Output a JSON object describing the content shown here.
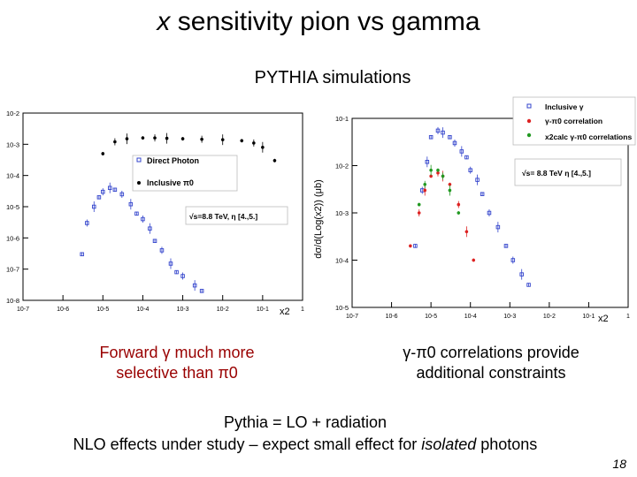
{
  "title": {
    "prefix": "x",
    "rest": " sensitivity pion vs gamma"
  },
  "subtitle": "PYTHIA simulations",
  "chart_data": [
    {
      "type": "scatter",
      "log_x": true,
      "log_y": true,
      "xlim": [
        1e-07,
        1
      ],
      "ylim": [
        1e-08,
        0.01
      ],
      "xlabel": "x2",
      "ylabel": "",
      "x_ticks": [
        "10-7",
        "10-6",
        "10-5",
        "10-4",
        "10-3",
        "10-2",
        "10-1",
        "1"
      ],
      "y_ticks": [
        "10-8",
        "10-7",
        "10-6",
        "10-5",
        "10-4",
        "10-3",
        "10-2"
      ],
      "annotation": "√s=8.8 TeV, η [4.,5.]",
      "series": [
        {
          "name": "Direct Photon",
          "color": "#3344cc",
          "marker": "open-square",
          "x": [
            3e-06,
            4e-06,
            6e-06,
            8e-06,
            1e-05,
            1.5e-05,
            2e-05,
            3e-05,
            5e-05,
            7e-05,
            0.0001,
            0.00015,
            0.0002,
            0.0003,
            0.0005,
            0.0007,
            0.001,
            0.002,
            0.003
          ],
          "y": [
            3e-07,
            3e-06,
            1e-05,
            2e-05,
            3e-05,
            4e-05,
            3.5e-05,
            2.5e-05,
            1.2e-05,
            6e-06,
            4e-06,
            2e-06,
            8e-07,
            4e-07,
            1.5e-07,
            8e-08,
            6e-08,
            3e-08,
            2e-08
          ]
        },
        {
          "name": "Inclusive π0",
          "color": "#000000",
          "marker": "filled-circle",
          "x": [
            1e-05,
            2e-05,
            4e-05,
            0.0001,
            0.0002,
            0.0004,
            0.001,
            0.003,
            0.01,
            0.03,
            0.06,
            0.1,
            0.2
          ],
          "y": [
            0.0005,
            0.0012,
            0.0015,
            0.0016,
            0.0016,
            0.00155,
            0.0015,
            0.00145,
            0.0014,
            0.0013,
            0.0011,
            0.0008,
            0.0003
          ]
        }
      ]
    },
    {
      "type": "scatter",
      "log_x": true,
      "log_y": true,
      "xlim": [
        1e-07,
        1
      ],
      "ylim": [
        1e-05,
        0.1
      ],
      "xlabel": "x2",
      "ylabel": "dσ/d(Log(x2)) (μb)",
      "x_ticks": [
        "10-7",
        "10-6",
        "10-5",
        "10-4",
        "10-3",
        "10-2",
        "10-1",
        "1"
      ],
      "y_ticks": [
        "10-5",
        "10-4",
        "10-3",
        "10-2",
        "10-1"
      ],
      "annotation": "√s= 8.8 TeV η [4.,5.]",
      "series": [
        {
          "name": "Inclusive γ",
          "color": "#3344cc",
          "marker": "open-square",
          "x": [
            4e-06,
            6e-06,
            8e-06,
            1e-05,
            1.5e-05,
            2e-05,
            3e-05,
            4e-05,
            6e-05,
            8e-05,
            0.0001,
            0.00015,
            0.0002,
            0.0003,
            0.0005,
            0.0008,
            0.0012,
            0.002,
            0.003
          ],
          "y": [
            0.0002,
            0.003,
            0.012,
            0.04,
            0.055,
            0.05,
            0.04,
            0.03,
            0.02,
            0.015,
            0.008,
            0.005,
            0.0025,
            0.001,
            0.0005,
            0.0002,
            0.0001,
            5e-05,
            3e-05
          ]
        },
        {
          "name": "γ-π0 correlation",
          "color": "#dd2222",
          "marker": "filled-circle",
          "x": [
            3e-06,
            5e-06,
            7e-06,
            1e-05,
            1.5e-05,
            2e-05,
            3e-05,
            5e-05,
            8e-05,
            0.00012
          ],
          "y": [
            0.0002,
            0.001,
            0.003,
            0.006,
            0.007,
            0.006,
            0.004,
            0.0015,
            0.0004,
            0.0001
          ]
        },
        {
          "name": "x2calc γ-π0 correlations",
          "color": "#229922",
          "marker": "filled-circle",
          "x": [
            5e-06,
            7e-06,
            1e-05,
            1.5e-05,
            2e-05,
            3e-05,
            5e-05
          ],
          "y": [
            0.0015,
            0.004,
            0.008,
            0.008,
            0.006,
            0.003,
            0.001
          ]
        }
      ]
    }
  ],
  "captions": {
    "left_line1": "Forward γ much more",
    "left_line2": "selective than π0",
    "right_line1": "γ-π0 correlations provide",
    "right_line2": "additional constraints"
  },
  "note": {
    "line1": "Pythia = LO + radiation",
    "line2_before": "NLO effects under study – expect small effect for ",
    "line2_italic": "isolated",
    "line2_after": " photons"
  },
  "page_number": "18"
}
